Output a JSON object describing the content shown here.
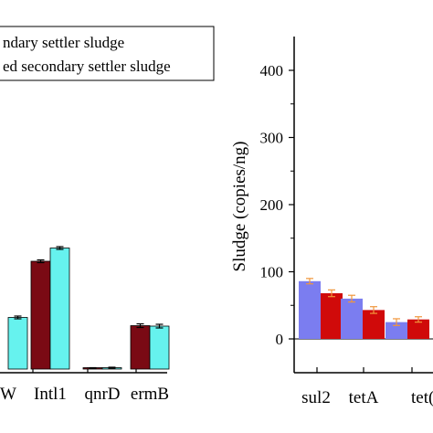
{
  "chart_data": [
    {
      "type": "bar",
      "categories": [
        "W",
        "Intl1",
        "qnrD",
        "ermB"
      ],
      "category_labels": [
        "W",
        "Intl1",
        "qnrD",
        "ermB"
      ],
      "series": [
        {
          "name": "ndary settler sludge",
          "values": [
            null,
            236,
            2,
            95
          ],
          "errors": [
            null,
            3,
            1,
            4
          ]
        },
        {
          "name": "ed secondary settler sludge",
          "values": [
            113,
            265,
            3,
            94
          ],
          "errors": [
            3,
            3,
            1,
            4
          ]
        }
      ],
      "legend": {
        "placement": "top-left"
      },
      "colors": [
        "#7a0a14",
        "#66f2ee"
      ]
    },
    {
      "type": "bar",
      "categories": [
        "sul2",
        "tetA",
        "tetC"
      ],
      "category_labels": [
        "sul2",
        "tetA",
        "tet("
      ],
      "series": [
        {
          "values": [
            86,
            60,
            25
          ],
          "errors": [
            4,
            5,
            5
          ]
        },
        {
          "values": [
            68,
            43,
            29
          ],
          "errors": [
            5,
            5,
            4
          ]
        }
      ],
      "ylabel": "Sludge (copies/ng)",
      "yticks": [
        0,
        100,
        200,
        300,
        400
      ],
      "ylim": [
        -50,
        450
      ],
      "colors": [
        "#7b7df0",
        "#d00a0a",
        "#f0963c"
      ]
    }
  ]
}
